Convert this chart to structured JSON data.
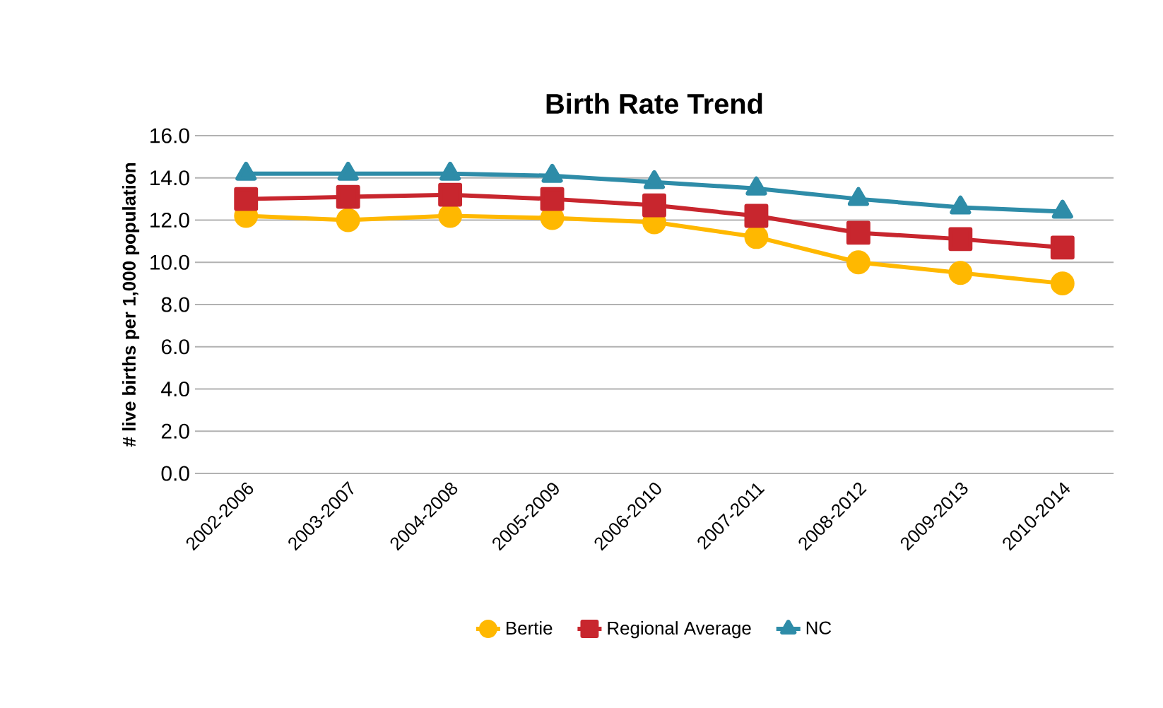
{
  "chart_data": {
    "type": "line",
    "title": "Birth Rate Trend",
    "ylabel": "# live births per 1,000 population",
    "categories": [
      "2002-2006",
      "2003-2007",
      "2004-2008",
      "2005-2009",
      "2006-2010",
      "2007-2011",
      "2008-2012",
      "2009-2013",
      "2010-2014"
    ],
    "series": [
      {
        "name": "Bertie",
        "color": "#ffb800",
        "marker": "circle",
        "values": [
          12.2,
          12.0,
          12.2,
          12.1,
          11.9,
          11.2,
          10.0,
          9.5,
          9.0
        ]
      },
      {
        "name": "Regional Average",
        "color": "#c8262e",
        "marker": "square",
        "values": [
          13.0,
          13.1,
          13.2,
          13.0,
          12.7,
          12.2,
          11.4,
          11.1,
          10.7
        ]
      },
      {
        "name": "NC",
        "color": "#2e8ca8",
        "marker": "triangle",
        "values": [
          14.2,
          14.2,
          14.2,
          14.1,
          13.8,
          13.5,
          13.0,
          12.6,
          12.4
        ]
      }
    ],
    "ylim": [
      0,
      16
    ],
    "yticks": [
      {
        "value": 0,
        "label": "0.0"
      },
      {
        "value": 2,
        "label": "2.0"
      },
      {
        "value": 4,
        "label": "4.0"
      },
      {
        "value": 6,
        "label": "6.0"
      },
      {
        "value": 8,
        "label": "8.0"
      },
      {
        "value": 10,
        "label": "10.0"
      },
      {
        "value": 12,
        "label": "12.0"
      },
      {
        "value": 14,
        "label": "14.0"
      },
      {
        "value": 16,
        "label": "16.0"
      }
    ],
    "grid": "y",
    "legend": "bottom",
    "line_style": "solid"
  }
}
